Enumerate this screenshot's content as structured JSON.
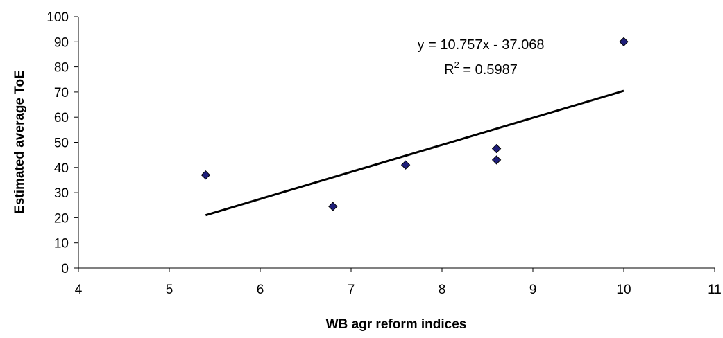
{
  "chart_data": {
    "type": "scatter",
    "xlabel": "WB agr reform indices",
    "ylabel": "Estimated average ToE",
    "xlim": [
      4,
      11
    ],
    "ylim": [
      0,
      100
    ],
    "x_ticks": [
      4,
      5,
      6,
      7,
      8,
      9,
      10,
      11
    ],
    "y_ticks": [
      0,
      10,
      20,
      30,
      40,
      50,
      60,
      70,
      80,
      90,
      100
    ],
    "grid": false,
    "legend": "none",
    "marker": "diamond",
    "marker_color": "#1f1f7a",
    "series": [
      {
        "points": [
          {
            "x": 5.4,
            "y": 37
          },
          {
            "x": 6.8,
            "y": 24.5
          },
          {
            "x": 7.6,
            "y": 41
          },
          {
            "x": 8.6,
            "y": 47.5
          },
          {
            "x": 8.6,
            "y": 43
          },
          {
            "x": 10.0,
            "y": 90
          }
        ]
      }
    ],
    "trendline": {
      "type": "linear",
      "slope": 10.757,
      "intercept": -37.068,
      "x_range": [
        5.4,
        10.0
      ],
      "color": "#000000"
    },
    "annotations": {
      "equation": "y = 10.757x - 37.068",
      "r_squared_prefix": "R",
      "r_squared_sup": "2",
      "r_squared_value": " = 0.5987"
    }
  }
}
